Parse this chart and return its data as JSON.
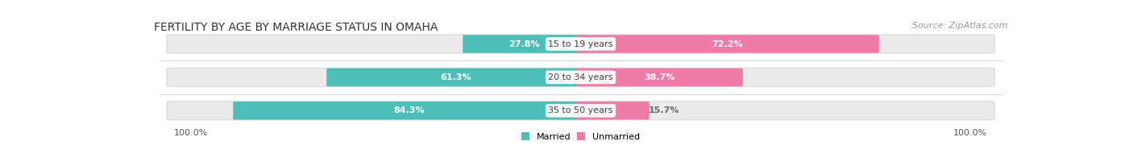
{
  "title": "FERTILITY BY AGE BY MARRIAGE STATUS IN OMAHA",
  "source": "Source: ZipAtlas.com",
  "categories": [
    "15 to 19 years",
    "20 to 34 years",
    "35 to 50 years"
  ],
  "married_pct": [
    27.8,
    61.3,
    84.3
  ],
  "unmarried_pct": [
    72.2,
    38.7,
    15.7
  ],
  "married_color": "#4BBFB8",
  "unmarried_color": "#F07BA8",
  "bar_bg_color": "#EBEBEB",
  "bar_bg_edge_color": "#DCDCDC",
  "label_100_left": "100.0%",
  "label_100_right": "100.0%",
  "legend_married": "Married",
  "legend_unmarried": "Unmarried",
  "title_fontsize": 10,
  "source_fontsize": 8,
  "pct_label_fontsize": 8,
  "category_fontsize": 8,
  "footer_fontsize": 8
}
